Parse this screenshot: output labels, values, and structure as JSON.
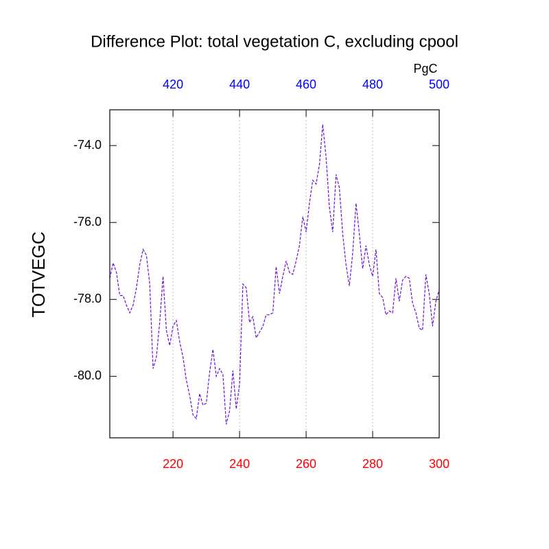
{
  "chart_data": {
    "type": "line",
    "title": "Difference Plot: total vegetation C, excluding cpool",
    "ylabel": "TOTVEGC",
    "x2label": "PgC",
    "x": [
      201,
      202,
      203,
      204,
      205,
      206,
      207,
      208,
      209,
      210,
      211,
      212,
      213,
      214,
      215,
      216,
      217,
      218,
      219,
      220,
      221,
      222,
      223,
      224,
      225,
      226,
      227,
      228,
      229,
      230,
      231,
      232,
      233,
      234,
      235,
      236,
      237,
      238,
      239,
      240,
      241,
      242,
      243,
      244,
      245,
      246,
      247,
      248,
      249,
      250,
      251,
      252,
      253,
      254,
      255,
      256,
      257,
      258,
      259,
      260,
      261,
      262,
      263,
      264,
      265,
      266,
      267,
      268,
      269,
      270,
      271,
      272,
      273,
      274,
      275,
      276,
      277,
      278,
      279,
      280,
      281,
      282,
      283,
      284,
      285,
      286,
      287,
      288,
      289,
      290,
      291,
      292,
      293,
      294,
      295,
      296,
      297,
      298,
      299,
      300
    ],
    "series": [
      {
        "name": "TOTVEGC",
        "color": "#6a0fd8",
        "values": [
          -77.45,
          -77.05,
          -77.3,
          -77.9,
          -77.9,
          -78.15,
          -78.35,
          -78.15,
          -77.7,
          -77.1,
          -76.7,
          -76.85,
          -77.6,
          -79.8,
          -79.5,
          -78.6,
          -77.4,
          -78.8,
          -79.2,
          -78.7,
          -78.55,
          -79.1,
          -79.5,
          -80.1,
          -80.5,
          -81.0,
          -81.1,
          -80.45,
          -80.75,
          -80.7,
          -79.9,
          -79.3,
          -80.0,
          -79.8,
          -79.95,
          -81.25,
          -80.9,
          -79.85,
          -80.85,
          -80.2,
          -77.6,
          -77.7,
          -78.6,
          -78.45,
          -79.0,
          -78.85,
          -78.7,
          -78.4,
          -78.4,
          -78.35,
          -77.15,
          -77.85,
          -77.4,
          -77.0,
          -77.3,
          -77.35,
          -77.0,
          -76.6,
          -75.85,
          -76.25,
          -75.5,
          -74.9,
          -75.0,
          -74.5,
          -73.45,
          -74.3,
          -75.6,
          -76.25,
          -74.75,
          -75.1,
          -76.3,
          -77.1,
          -77.65,
          -76.8,
          -75.5,
          -76.3,
          -77.2,
          -76.6,
          -77.1,
          -77.4,
          -76.7,
          -77.85,
          -77.95,
          -78.4,
          -78.3,
          -78.35,
          -77.45,
          -78.05,
          -77.5,
          -77.4,
          -77.45,
          -78.1,
          -78.35,
          -78.75,
          -78.8,
          -77.35,
          -77.85,
          -78.7,
          -78.05,
          -77.75
        ]
      }
    ],
    "xlim": [
      201,
      300
    ],
    "xticks": [
      220,
      240,
      260,
      280,
      300
    ],
    "xtick_color": "#ff0000",
    "x2lim": [
      401,
      500
    ],
    "x2ticks": [
      420,
      440,
      460,
      480,
      500
    ],
    "x2tick_color": "#0000ff",
    "ylim": [
      -81.6,
      -73.07
    ],
    "yticks": [
      {
        "value": -74,
        "label": "-74.0"
      },
      {
        "value": -76,
        "label": "-76.0"
      },
      {
        "value": -78,
        "label": "-78.0"
      },
      {
        "value": -80,
        "label": "-80.0"
      }
    ],
    "grid": true
  }
}
